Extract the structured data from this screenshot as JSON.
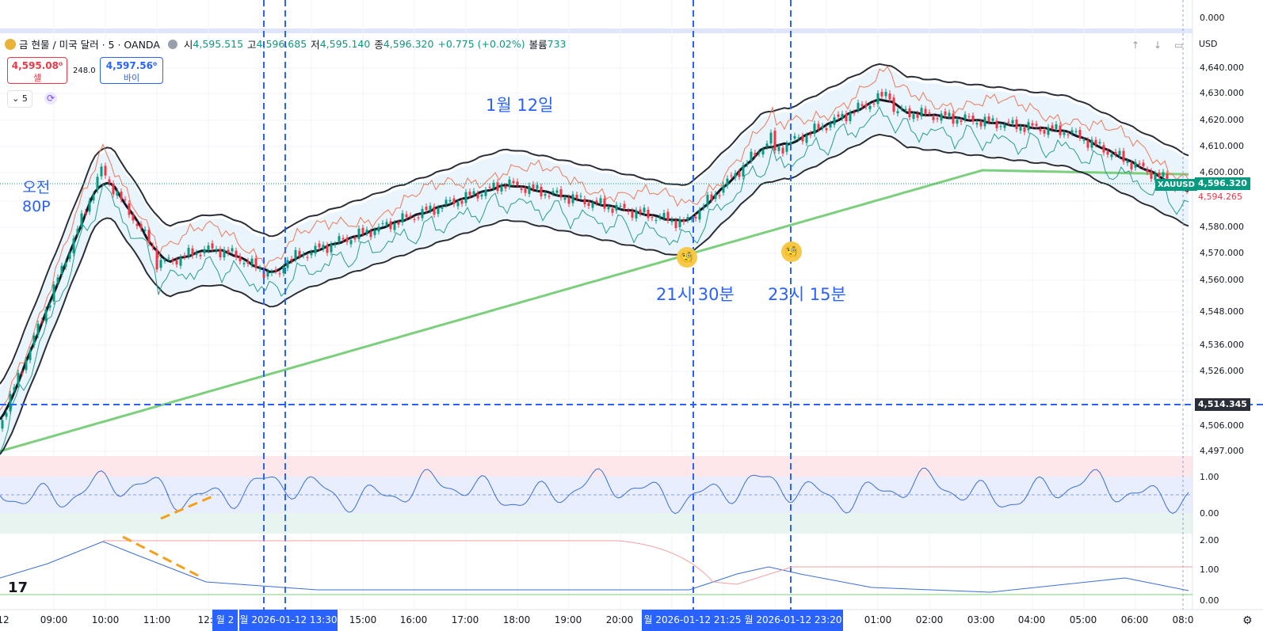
{
  "header": {
    "symbol_title": "금 현물 / 미국 달러 · 5 · OANDA",
    "open_label": "시",
    "open_value": "4,595.515",
    "high_label": "고",
    "high_value": "4,596.685",
    "low_label": "저",
    "low_value": "4,595.140",
    "close_label": "종",
    "close_value": "4,596.320",
    "change": "+0.775 (+0.02%)",
    "volume_label": "볼륨",
    "volume_value": "733"
  },
  "trade": {
    "sell_price": "4,595.08⁰",
    "sell_label": "셀",
    "spread": "248.0",
    "buy_price": "4,597.56⁰",
    "buy_label": "바이"
  },
  "timeframe": "5",
  "currency": "USD",
  "annotations": {
    "date_label": "1월 12일",
    "morning_l1": "오전",
    "morning_l2": "80P",
    "time1": "21시 30분",
    "time2": "23시 15분"
  },
  "price_scale": [
    "4,640.000",
    "4,630.000",
    "4,620.000",
    "4,610.000",
    "4,600.000",
    "4,580.000",
    "4,570.000",
    "4,560.000",
    "4,548.000",
    "4,536.000",
    "4,526.000",
    "4,506.000",
    "4,497.000"
  ],
  "top_scale": "0.000",
  "osc_scale": [
    "1.00",
    "0.00"
  ],
  "osc2_scale": [
    "2.00",
    "1.00",
    "0.00"
  ],
  "price_tags": {
    "last": "4,596.320",
    "symbol": "XAUUSD",
    "bid": "4,594.265",
    "crosshair": "4,514.345"
  },
  "time_axis": [
    "09:00",
    "10:00",
    "11:00",
    "12:0",
    "15:00",
    "16:00",
    "17:00",
    "18:00",
    "19:00",
    "20:00",
    "01:00",
    "02:00",
    "03:00",
    "04:00",
    "05:00",
    "06:00",
    "08:0"
  ],
  "time_axis_left": "12",
  "time_tags": {
    "t1": "월 2",
    "t2": "월 2026-01-12   13:30",
    "t3": "월 2026-01-12   21:25",
    "t4": "월 2026-01-12   23:20"
  },
  "colors": {
    "up": "#089981",
    "down": "#f23645",
    "accent": "#2962ff",
    "ma_long": "#7ccf7c",
    "bands": "#2a2e39"
  },
  "icons": [
    "gold-coin-icon",
    "eye-icon",
    "refresh-icon",
    "thinking-face-icon",
    "tradingview-logo-icon",
    "settings-gear-icon"
  ]
}
